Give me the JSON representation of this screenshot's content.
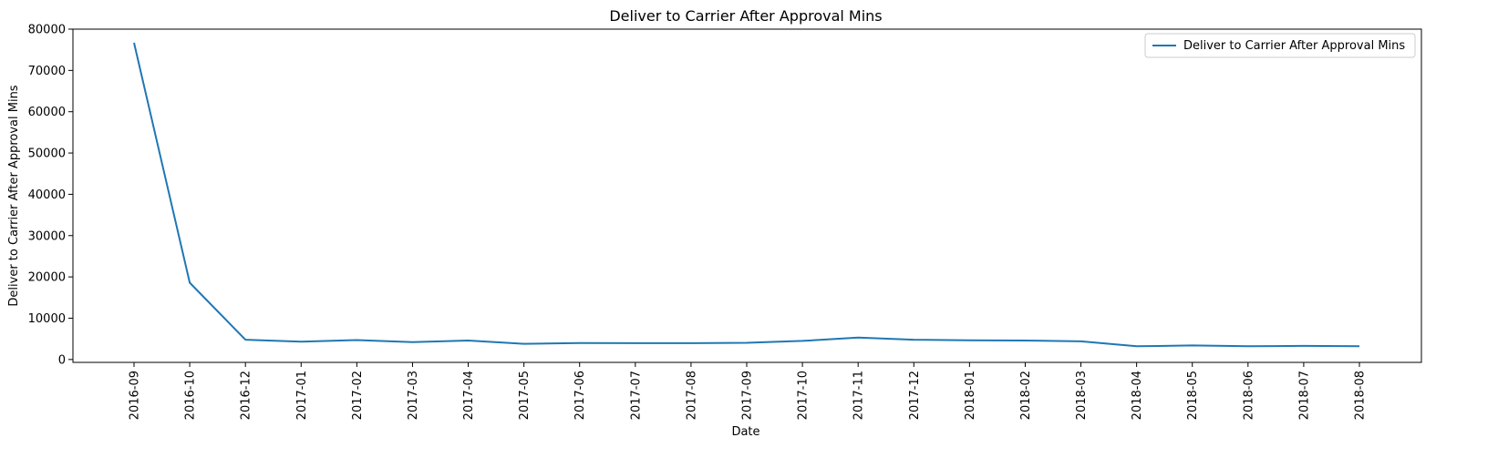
{
  "chart_data": {
    "type": "line",
    "title": "Deliver to Carrier After Approval Mins",
    "xlabel": "Date",
    "ylabel": "Deliver to Carrier After Approval Mins",
    "categories": [
      "2016-09",
      "2016-10",
      "2016-12",
      "2017-01",
      "2017-02",
      "2017-03",
      "2017-04",
      "2017-05",
      "2017-06",
      "2017-07",
      "2017-08",
      "2017-09",
      "2017-10",
      "2017-11",
      "2017-12",
      "2018-01",
      "2018-02",
      "2018-03",
      "2018-04",
      "2018-05",
      "2018-06",
      "2018-07",
      "2018-08"
    ],
    "series": [
      {
        "name": "Deliver to Carrier After Approval Mins",
        "color": "#1f77b4",
        "values": [
          76700,
          18600,
          4800,
          4300,
          4700,
          4200,
          4600,
          3800,
          4000,
          3950,
          3950,
          4050,
          4500,
          5300,
          4800,
          4650,
          4600,
          4400,
          3200,
          3400,
          3200,
          3300,
          3200
        ]
      }
    ],
    "ylim": [
      -700,
      80000
    ],
    "yticks": [
      0,
      10000,
      20000,
      30000,
      40000,
      50000,
      60000,
      70000,
      80000
    ],
    "grid": false,
    "legend": "top-right"
  }
}
